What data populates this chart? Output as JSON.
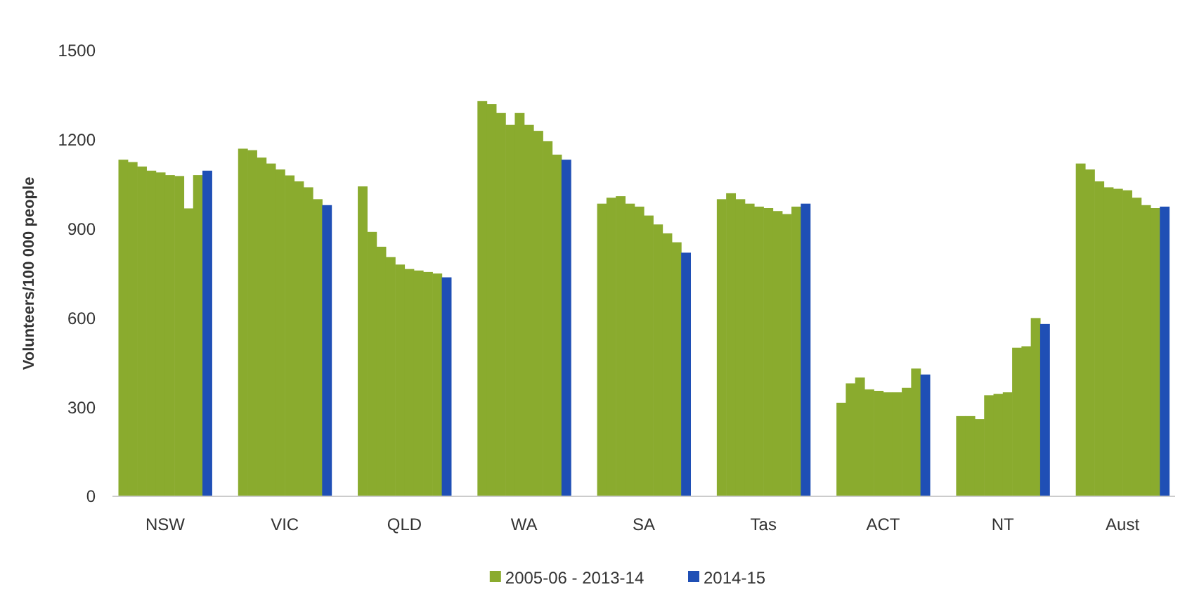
{
  "chart_data": {
    "type": "bar",
    "ylabel": "Volunteers/100 000 people",
    "categories": [
      "NSW",
      "VIC",
      "QLD",
      "WA",
      "SA",
      "Tas",
      "ACT",
      "NT",
      "Aust"
    ],
    "ylim": [
      0,
      1500
    ],
    "yticks": [
      0,
      300,
      600,
      900,
      1200,
      1500
    ],
    "grid": false,
    "legend": "bottom",
    "series": [
      {
        "name": "2005-06 - 2013-14",
        "color": "#8aab2e",
        "values": [
          1133,
          1170,
          1043,
          1330,
          985,
          1000,
          315,
          270,
          1120
        ]
      },
      {
        "color": "#8aab2e",
        "values": [
          1125,
          1165,
          890,
          1320,
          1005,
          1020,
          380,
          270,
          1100
        ]
      },
      {
        "color": "#8aab2e",
        "values": [
          1110,
          1140,
          840,
          1290,
          1010,
          1000,
          400,
          260,
          1060
        ]
      },
      {
        "color": "#8aab2e",
        "values": [
          1096,
          1120,
          805,
          1250,
          985,
          985,
          360,
          340,
          1040
        ]
      },
      {
        "color": "#8aab2e",
        "values": [
          1090,
          1100,
          780,
          1290,
          975,
          975,
          355,
          345,
          1035
        ]
      },
      {
        "color": "#8aab2e",
        "values": [
          1081,
          1080,
          765,
          1250,
          945,
          970,
          350,
          350,
          1030
        ]
      },
      {
        "color": "#8aab2e",
        "values": [
          1078,
          1060,
          760,
          1230,
          915,
          960,
          350,
          500,
          1005
        ]
      },
      {
        "color": "#8aab2e",
        "values": [
          969,
          1040,
          755,
          1195,
          885,
          950,
          365,
          505,
          980
        ]
      },
      {
        "color": "#8aab2e",
        "values": [
          1081,
          1000,
          750,
          1150,
          855,
          975,
          430,
          600,
          970
        ]
      },
      {
        "name": "2014-15",
        "color": "#1f4fb5",
        "values": [
          1096,
          980,
          737,
          1133,
          820,
          985,
          410,
          580,
          975
        ]
      }
    ]
  }
}
